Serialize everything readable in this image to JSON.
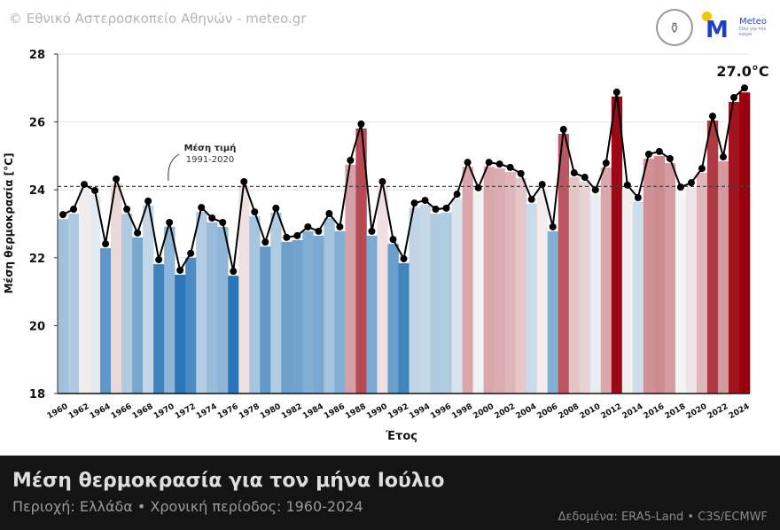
{
  "header": {
    "credit": "© Εθνικό Αστεροσκοπείο Αθηνών - meteo.gr",
    "logo_text": "Meteo",
    "logo_sub": "Όλα για τον καιρό"
  },
  "chart_data": {
    "type": "bar",
    "title": "Μέση θερμοκρασία για τον μήνα Ιούλιο",
    "xlabel": "Έτος",
    "ylabel": "Μέση θερμοκρασία [°C]",
    "ylim": [
      18,
      28
    ],
    "yticks": [
      18,
      20,
      22,
      24,
      26,
      28
    ],
    "x": [
      1960,
      1961,
      1962,
      1963,
      1964,
      1965,
      1966,
      1967,
      1968,
      1969,
      1970,
      1971,
      1972,
      1973,
      1974,
      1975,
      1976,
      1977,
      1978,
      1979,
      1980,
      1981,
      1982,
      1983,
      1984,
      1985,
      1986,
      1987,
      1988,
      1989,
      1990,
      1991,
      1992,
      1993,
      1994,
      1995,
      1996,
      1997,
      1998,
      1999,
      2000,
      2001,
      2002,
      2003,
      2004,
      2005,
      2006,
      2007,
      2008,
      2009,
      2010,
      2011,
      2012,
      2013,
      2014,
      2015,
      2016,
      2017,
      2018,
      2019,
      2020,
      2021,
      2022,
      2023,
      2024
    ],
    "values": [
      23.27,
      23.43,
      24.16,
      23.98,
      22.41,
      24.32,
      23.43,
      22.73,
      23.67,
      21.94,
      23.04,
      21.63,
      22.13,
      23.48,
      23.17,
      23.04,
      21.6,
      24.24,
      23.35,
      22.46,
      23.46,
      22.6,
      22.65,
      22.91,
      22.78,
      23.3,
      22.91,
      24.87,
      25.94,
      22.78,
      24.24,
      22.54,
      21.97,
      23.61,
      23.69,
      23.43,
      23.46,
      23.87,
      24.81,
      24.06,
      24.81,
      24.76,
      24.66,
      24.48,
      23.72,
      24.16,
      22.91,
      25.78,
      24.5,
      24.37,
      24.0,
      24.79,
      26.88,
      24.14,
      23.77,
      25.05,
      25.13,
      24.92,
      24.08,
      24.21,
      24.63,
      26.17,
      24.97,
      26.72,
      27.0
    ],
    "reference_line": {
      "value": 24.1,
      "label": "Μέση τιμή",
      "period": "1991-2020"
    },
    "last_value_label": "27.0°C",
    "grid": true,
    "colors": {
      "cold": "#2171b5",
      "neutral": "#f7f7f7",
      "warm": "#99000d"
    }
  },
  "footer": {
    "title": "Μέση θερμοκρασία για τον μήνα Ιούλιο",
    "subtitle": "Περιοχή: Ελλάδα • Χρονική περίοδος: 1960-2024",
    "source": "Δεδομένα: ERA5-Land • C3S/ECMWF"
  }
}
